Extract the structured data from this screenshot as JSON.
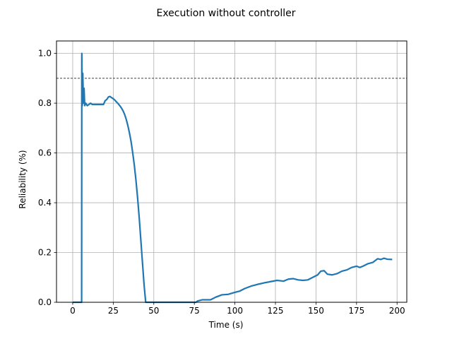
{
  "chart_data": {
    "type": "line",
    "title": "Execution without controller",
    "xlabel": "Time (s)",
    "ylabel": "Reliability (%)",
    "xlim": [
      -10,
      206
    ],
    "ylim": [
      0.0,
      1.05
    ],
    "xticks": [
      0,
      25,
      50,
      75,
      100,
      125,
      150,
      175,
      200
    ],
    "xtick_labels": [
      "0",
      "25",
      "50",
      "75",
      "100",
      "125",
      "150",
      "175",
      "200"
    ],
    "yticks": [
      0.0,
      0.2,
      0.4,
      0.6,
      0.8,
      1.0
    ],
    "ytick_labels": [
      "0.0",
      "0.2",
      "0.4",
      "0.6",
      "0.8",
      "1.0"
    ],
    "grid": true,
    "reference_line": {
      "y": 0.9,
      "style": "dashed",
      "color": "#000000"
    },
    "series": [
      {
        "color": "#1f77b4",
        "points": [
          [
            0,
            0.0
          ],
          [
            5.5,
            0.0
          ],
          [
            5.6,
            1.0
          ],
          [
            5.9,
            0.79
          ],
          [
            6.2,
            0.92
          ],
          [
            6.6,
            0.8
          ],
          [
            7,
            0.86
          ],
          [
            7.4,
            0.79
          ],
          [
            8,
            0.8
          ],
          [
            9,
            0.79
          ],
          [
            10,
            0.795
          ],
          [
            11,
            0.8
          ],
          [
            12,
            0.795
          ],
          [
            14,
            0.795
          ],
          [
            16,
            0.795
          ],
          [
            19,
            0.795
          ],
          [
            20,
            0.81
          ],
          [
            21,
            0.815
          ],
          [
            22,
            0.825
          ],
          [
            23,
            0.827
          ],
          [
            24,
            0.822
          ],
          [
            25,
            0.818
          ],
          [
            26,
            0.812
          ],
          [
            27,
            0.805
          ],
          [
            28,
            0.798
          ],
          [
            29,
            0.79
          ],
          [
            30,
            0.781
          ],
          [
            31,
            0.77
          ],
          [
            32,
            0.755
          ],
          [
            33,
            0.735
          ],
          [
            34,
            0.71
          ],
          [
            35,
            0.68
          ],
          [
            36,
            0.645
          ],
          [
            37,
            0.6
          ],
          [
            38,
            0.55
          ],
          [
            39,
            0.49
          ],
          [
            40,
            0.42
          ],
          [
            41,
            0.34
          ],
          [
            42,
            0.25
          ],
          [
            43,
            0.16
          ],
          [
            44,
            0.07
          ],
          [
            45,
            0.0
          ],
          [
            76,
            0.0
          ],
          [
            77,
            0.005
          ],
          [
            80,
            0.01
          ],
          [
            85,
            0.01
          ],
          [
            88,
            0.02
          ],
          [
            92,
            0.03
          ],
          [
            96,
            0.032
          ],
          [
            100,
            0.04
          ],
          [
            103,
            0.045
          ],
          [
            106,
            0.055
          ],
          [
            110,
            0.065
          ],
          [
            114,
            0.072
          ],
          [
            118,
            0.078
          ],
          [
            122,
            0.083
          ],
          [
            126,
            0.088
          ],
          [
            130,
            0.085
          ],
          [
            133,
            0.093
          ],
          [
            136,
            0.095
          ],
          [
            139,
            0.09
          ],
          [
            142,
            0.088
          ],
          [
            145,
            0.09
          ],
          [
            148,
            0.1
          ],
          [
            151,
            0.11
          ],
          [
            153,
            0.125
          ],
          [
            155,
            0.127
          ],
          [
            157,
            0.113
          ],
          [
            160,
            0.11
          ],
          [
            163,
            0.115
          ],
          [
            166,
            0.125
          ],
          [
            169,
            0.13
          ],
          [
            172,
            0.14
          ],
          [
            175,
            0.145
          ],
          [
            177,
            0.14
          ],
          [
            179,
            0.145
          ],
          [
            182,
            0.155
          ],
          [
            185,
            0.16
          ],
          [
            188,
            0.175
          ],
          [
            190,
            0.172
          ],
          [
            192,
            0.177
          ],
          [
            194,
            0.173
          ],
          [
            197,
            0.172
          ]
        ]
      }
    ]
  }
}
